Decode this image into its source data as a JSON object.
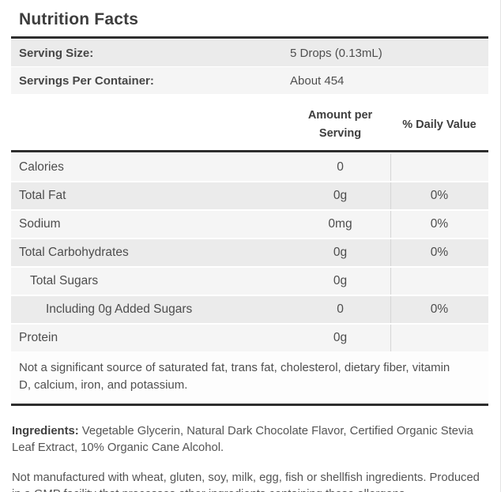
{
  "panel": {
    "title": "Nutrition Facts",
    "serving_rows": [
      {
        "label": "Serving Size:",
        "value": "5 Drops (0.13mL)"
      },
      {
        "label": "Servings Per Container:",
        "value": "About 454"
      }
    ],
    "columns": {
      "amount_header": "Amount per Serving",
      "daily_header": "% Daily Value"
    },
    "nutrient_rows": [
      {
        "name": "Calories",
        "amount": "0",
        "daily": ""
      },
      {
        "name": "Total Fat",
        "amount": "0g",
        "daily": "0%"
      },
      {
        "name": "Sodium",
        "amount": "0mg",
        "daily": "0%"
      },
      {
        "name": "Total Carbohydrates",
        "amount": "0g",
        "daily": "0%"
      },
      {
        "name": "Total Sugars",
        "amount": "0g",
        "daily": ""
      },
      {
        "name": "Including 0g Added Sugars",
        "amount": "0",
        "daily": "0%"
      },
      {
        "name": "Protein",
        "amount": "0g",
        "daily": ""
      }
    ],
    "footnote": "Not a significant source of saturated fat, trans fat, cholesterol, dietary fiber, vitamin D, calcium, iron, and potassium.",
    "ingredients": {
      "label": "Ingredients:",
      "text": " Vegetable Glycerin, Natural Dark Chocolate Flavor, Certified Organic Stevia Leaf Extract, 10% Organic Cane Alcohol."
    },
    "allergen_note": "Not manufactured with wheat, gluten, soy, milk, egg, fish or shellfish ingredients. Produced in a GMP facility that processes other ingredients containing these allergens.",
    "colors": {
      "rule": "#2e2e2e",
      "row_light": "#f5f5f5",
      "row_dark": "#ebebeb",
      "column_divider": "#d6d6d6",
      "text": "#4d4d4d"
    }
  }
}
